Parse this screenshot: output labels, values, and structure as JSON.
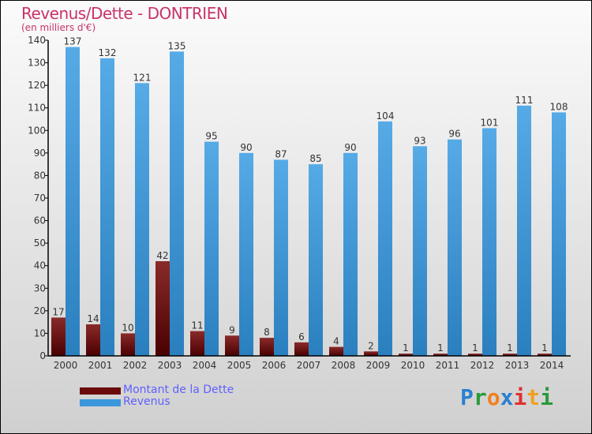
{
  "chart_data": {
    "type": "bar",
    "title": "Revenus/Dette - DONTRIEN",
    "subtitle": "(en milliers d'€)",
    "categories": [
      "2000",
      "2001",
      "2002",
      "2003",
      "2004",
      "2005",
      "2006",
      "2007",
      "2008",
      "2009",
      "2010",
      "2011",
      "2012",
      "2013",
      "2014"
    ],
    "series": [
      {
        "name": "Montant de la Dette",
        "color": "#6b0a0a",
        "values": [
          17,
          14,
          10,
          42,
          11,
          9,
          8,
          6,
          4,
          2,
          1,
          1,
          1,
          1,
          1
        ]
      },
      {
        "name": "Revenus",
        "color": "#3a97dc",
        "values": [
          137,
          132,
          121,
          135,
          95,
          90,
          87,
          85,
          90,
          104,
          93,
          96,
          101,
          111,
          108
        ]
      }
    ],
    "ylim": [
      0,
      140
    ],
    "yticks": [
      0,
      10,
      20,
      30,
      40,
      50,
      60,
      70,
      80,
      90,
      100,
      110,
      120,
      130,
      140
    ],
    "legend": "bottom-left"
  },
  "logo": "Proxiti"
}
